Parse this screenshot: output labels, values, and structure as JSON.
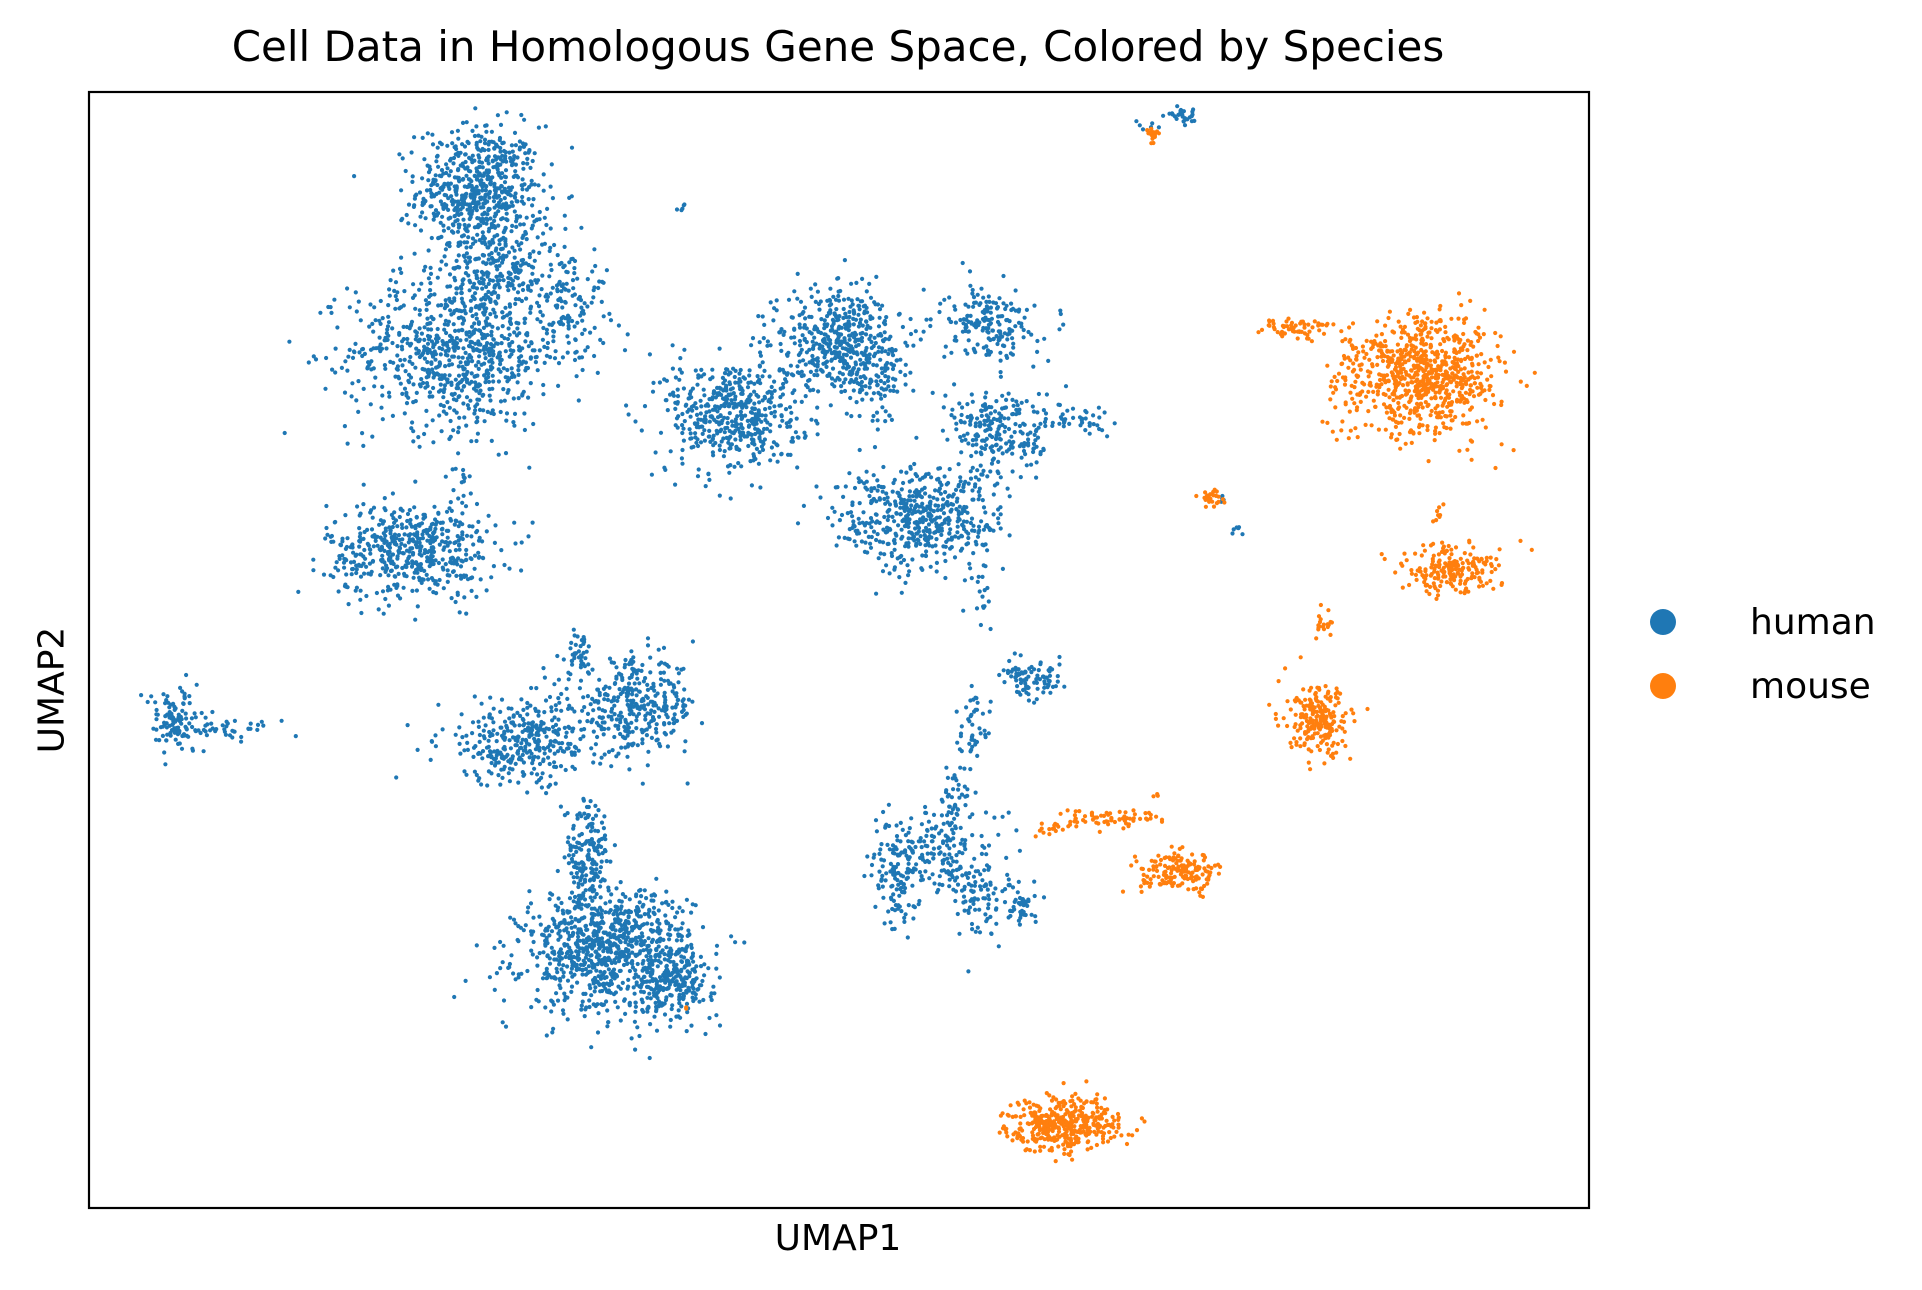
{
  "chart_data": {
    "type": "scatter",
    "title": "Cell Data in Homologous Gene Space, Colored by Species",
    "xlabel": "UMAP1",
    "ylabel": "UMAP2",
    "xlim": [
      0,
      20
    ],
    "ylim": [
      0,
      14
    ],
    "grid": false,
    "xticks": false,
    "yticks": false,
    "legend_position": "right",
    "series": [
      {
        "name": "human",
        "color": "#1f77b4",
        "clusters": [
          {
            "cx": 5.2,
            "cy": 12.75,
            "sx": 0.55,
            "sy": 0.55,
            "n": 650
          },
          {
            "cx": 4.9,
            "cy": 10.75,
            "sx": 0.95,
            "sy": 0.65,
            "n": 800
          },
          {
            "cx": 5.5,
            "cy": 11.75,
            "sx": 0.45,
            "sy": 0.35,
            "n": 200
          },
          {
            "cx": 6.4,
            "cy": 11.4,
            "sx": 0.35,
            "sy": 0.5,
            "n": 120
          },
          {
            "cx": 4.3,
            "cy": 8.25,
            "sx": 0.75,
            "sy": 0.4,
            "n": 520
          },
          {
            "cx": 4.95,
            "cy": 9.05,
            "sx": 0.08,
            "sy": 0.35,
            "n": 25
          },
          {
            "cx": 1.15,
            "cy": 6.1,
            "sx": 0.28,
            "sy": 0.28,
            "n": 110
          },
          {
            "cx": 1.9,
            "cy": 6.0,
            "sx": 0.45,
            "sy": 0.08,
            "n": 40
          },
          {
            "cx": 5.8,
            "cy": 5.85,
            "sx": 0.75,
            "sy": 0.35,
            "n": 360
          },
          {
            "cx": 7.3,
            "cy": 6.3,
            "sx": 0.55,
            "sy": 0.38,
            "n": 330
          },
          {
            "cx": 6.5,
            "cy": 6.95,
            "sx": 0.15,
            "sy": 0.22,
            "n": 40
          },
          {
            "cx": 6.9,
            "cy": 3.2,
            "sx": 0.75,
            "sy": 0.5,
            "n": 850
          },
          {
            "cx": 6.65,
            "cy": 4.35,
            "sx": 0.2,
            "sy": 0.55,
            "n": 180
          },
          {
            "cx": 7.8,
            "cy": 2.85,
            "sx": 0.35,
            "sy": 0.3,
            "n": 200
          },
          {
            "cx": 7.4,
            "cy": 3.65,
            "sx": 0.35,
            "sy": 0.2,
            "n": 60
          },
          {
            "cx": 8.6,
            "cy": 9.95,
            "sx": 0.6,
            "sy": 0.5,
            "n": 500
          },
          {
            "cx": 10.0,
            "cy": 10.9,
            "sx": 0.55,
            "sy": 0.45,
            "n": 480
          },
          {
            "cx": 11.1,
            "cy": 8.65,
            "sx": 0.75,
            "sy": 0.45,
            "n": 520
          },
          {
            "cx": 12.15,
            "cy": 9.75,
            "sx": 0.5,
            "sy": 0.35,
            "n": 220
          },
          {
            "cx": 12.0,
            "cy": 11.1,
            "sx": 0.4,
            "sy": 0.3,
            "n": 180
          },
          {
            "cx": 10.5,
            "cy": 10.3,
            "sx": 0.25,
            "sy": 0.35,
            "n": 60
          },
          {
            "cx": 13.2,
            "cy": 9.9,
            "sx": 0.3,
            "sy": 0.12,
            "n": 40
          },
          {
            "cx": 11.9,
            "cy": 7.8,
            "sx": 0.06,
            "sy": 0.25,
            "n": 15
          },
          {
            "cx": 7.9,
            "cy": 12.55,
            "sx": 0.05,
            "sy": 0.05,
            "n": 5
          },
          {
            "cx": 14.55,
            "cy": 13.7,
            "sx": 0.18,
            "sy": 0.06,
            "n": 30
          },
          {
            "cx": 14.15,
            "cy": 13.55,
            "sx": 0.12,
            "sy": 0.05,
            "n": 6
          },
          {
            "cx": 12.6,
            "cy": 6.6,
            "sx": 0.28,
            "sy": 0.15,
            "n": 90
          },
          {
            "cx": 11.8,
            "cy": 6.0,
            "sx": 0.15,
            "sy": 0.35,
            "n": 45
          },
          {
            "cx": 11.55,
            "cy": 5.15,
            "sx": 0.15,
            "sy": 0.35,
            "n": 40
          },
          {
            "cx": 11.2,
            "cy": 4.45,
            "sx": 0.5,
            "sy": 0.35,
            "n": 200
          },
          {
            "cx": 10.8,
            "cy": 4.15,
            "sx": 0.15,
            "sy": 0.5,
            "n": 80
          },
          {
            "cx": 11.9,
            "cy": 3.95,
            "sx": 0.25,
            "sy": 0.4,
            "n": 90
          },
          {
            "cx": 12.45,
            "cy": 3.8,
            "sx": 0.15,
            "sy": 0.15,
            "n": 40
          },
          {
            "cx": 15.3,
            "cy": 8.5,
            "sx": 0.05,
            "sy": 0.05,
            "n": 6
          },
          {
            "cx": 15.1,
            "cy": 8.9,
            "sx": 0.04,
            "sy": 0.04,
            "n": 4
          }
        ]
      },
      {
        "name": "mouse",
        "color": "#ff7f0e",
        "clusters": [
          {
            "cx": 17.9,
            "cy": 10.45,
            "sx": 0.6,
            "sy": 0.5,
            "n": 700
          },
          {
            "cx": 16.1,
            "cy": 11.05,
            "sx": 0.35,
            "sy": 0.08,
            "n": 60
          },
          {
            "cx": 16.9,
            "cy": 10.35,
            "sx": 0.3,
            "sy": 0.5,
            "n": 90
          },
          {
            "cx": 18.15,
            "cy": 8.0,
            "sx": 0.45,
            "sy": 0.2,
            "n": 200
          },
          {
            "cx": 18.0,
            "cy": 8.65,
            "sx": 0.05,
            "sy": 0.15,
            "n": 8
          },
          {
            "cx": 16.4,
            "cy": 6.1,
            "sx": 0.28,
            "sy": 0.28,
            "n": 220
          },
          {
            "cx": 16.5,
            "cy": 7.3,
            "sx": 0.1,
            "sy": 0.12,
            "n": 20
          },
          {
            "cx": 14.55,
            "cy": 4.2,
            "sx": 0.35,
            "sy": 0.16,
            "n": 160
          },
          {
            "cx": 13.6,
            "cy": 4.9,
            "sx": 0.5,
            "sy": 0.08,
            "n": 70
          },
          {
            "cx": 12.8,
            "cy": 4.75,
            "sx": 0.2,
            "sy": 0.06,
            "n": 15
          },
          {
            "cx": 14.2,
            "cy": 5.2,
            "sx": 0.08,
            "sy": 0.04,
            "n": 3
          },
          {
            "cx": 13.0,
            "cy": 1.05,
            "sx": 0.5,
            "sy": 0.22,
            "n": 400
          },
          {
            "cx": 14.2,
            "cy": 13.45,
            "sx": 0.08,
            "sy": 0.05,
            "n": 20
          },
          {
            "cx": 14.95,
            "cy": 8.9,
            "sx": 0.1,
            "sy": 0.07,
            "n": 25
          },
          {
            "cx": 7.95,
            "cy": 2.5,
            "sx": 0.03,
            "sy": 0.03,
            "n": 2
          }
        ]
      }
    ]
  }
}
